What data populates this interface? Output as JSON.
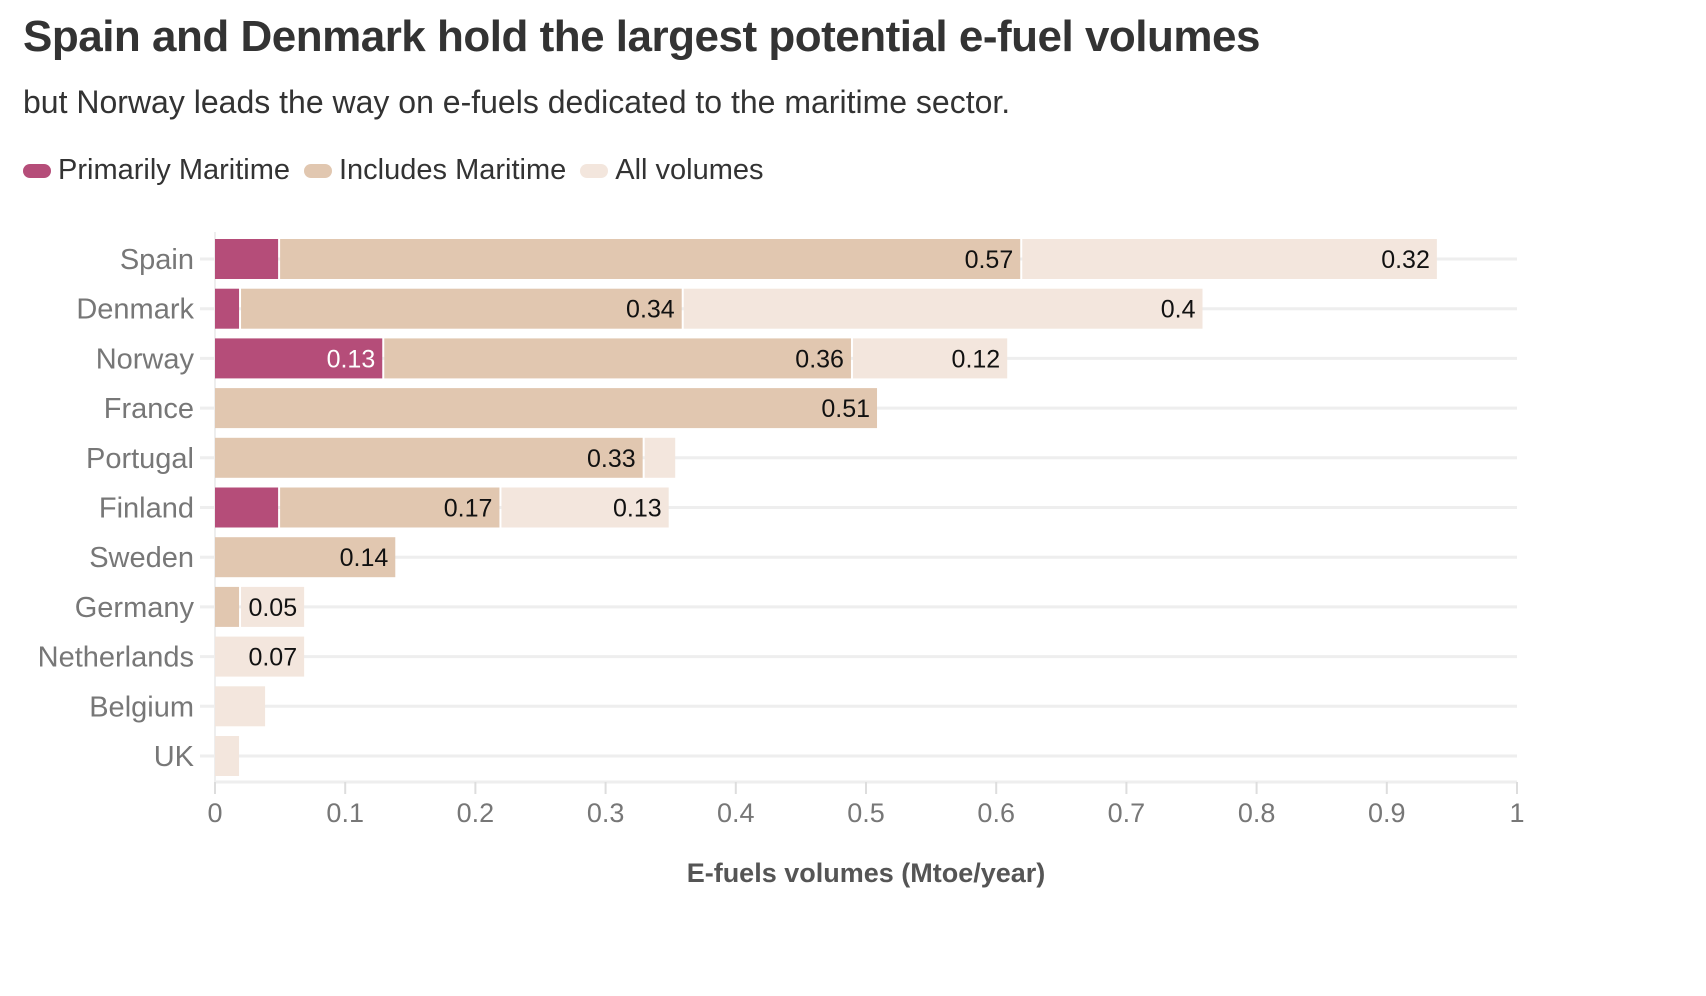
{
  "title": "Spain and Denmark hold the largest potential e-fuel volumes",
  "subtitle": "but Norway leads the way on e-fuels dedicated to the maritime sector.",
  "chart_data": {
    "type": "bar",
    "orientation": "horizontal",
    "stacked": true,
    "title": "Spain and Denmark hold the largest potential e-fuel volumes",
    "subtitle": "but Norway leads the way on e-fuels dedicated to the maritime sector.",
    "xlabel": "E-fuels volumes (Mtoe/year)",
    "ylabel": "",
    "xlim": [
      0,
      1
    ],
    "xticks": [
      "0",
      "0.1",
      "0.2",
      "0.3",
      "0.4",
      "0.5",
      "0.6",
      "0.7",
      "0.8",
      "0.9",
      "1"
    ],
    "grid": true,
    "legend_position": "top-left",
    "categories": [
      "Spain",
      "Denmark",
      "Norway",
      "France",
      "Portugal",
      "Finland",
      "Sweden",
      "Germany",
      "Netherlands",
      "Belgium",
      "UK"
    ],
    "series": [
      {
        "name": "Primarily Maritime",
        "color": "#b54d79",
        "label_color": "#ffffff",
        "values": [
          0.05,
          0.02,
          0.13,
          0,
          0,
          0.05,
          0,
          0,
          0,
          0,
          0
        ],
        "labels": [
          "",
          "",
          "0.13",
          "",
          "",
          "",
          "",
          "",
          "",
          "",
          ""
        ]
      },
      {
        "name": "Includes Maritime",
        "color": "#e1c7b0",
        "label_color": "#111111",
        "values": [
          0.57,
          0.34,
          0.36,
          0.51,
          0.33,
          0.17,
          0.14,
          0.02,
          0,
          0,
          0
        ],
        "labels": [
          "0.57",
          "0.34",
          "0.36",
          "0.51",
          "0.33",
          "0.17",
          "0.14",
          "",
          "",
          "",
          ""
        ]
      },
      {
        "name": "All volumes",
        "color": "#f3e6dd",
        "label_color": "#111111",
        "values": [
          0.32,
          0.4,
          0.12,
          0,
          0.025,
          0.13,
          0,
          0.05,
          0.07,
          0.04,
          0.02
        ],
        "labels": [
          "0.32",
          "0.4",
          "0.12",
          "",
          "",
          "0.13",
          "",
          "0.05",
          "0.07",
          "",
          ""
        ]
      }
    ]
  }
}
